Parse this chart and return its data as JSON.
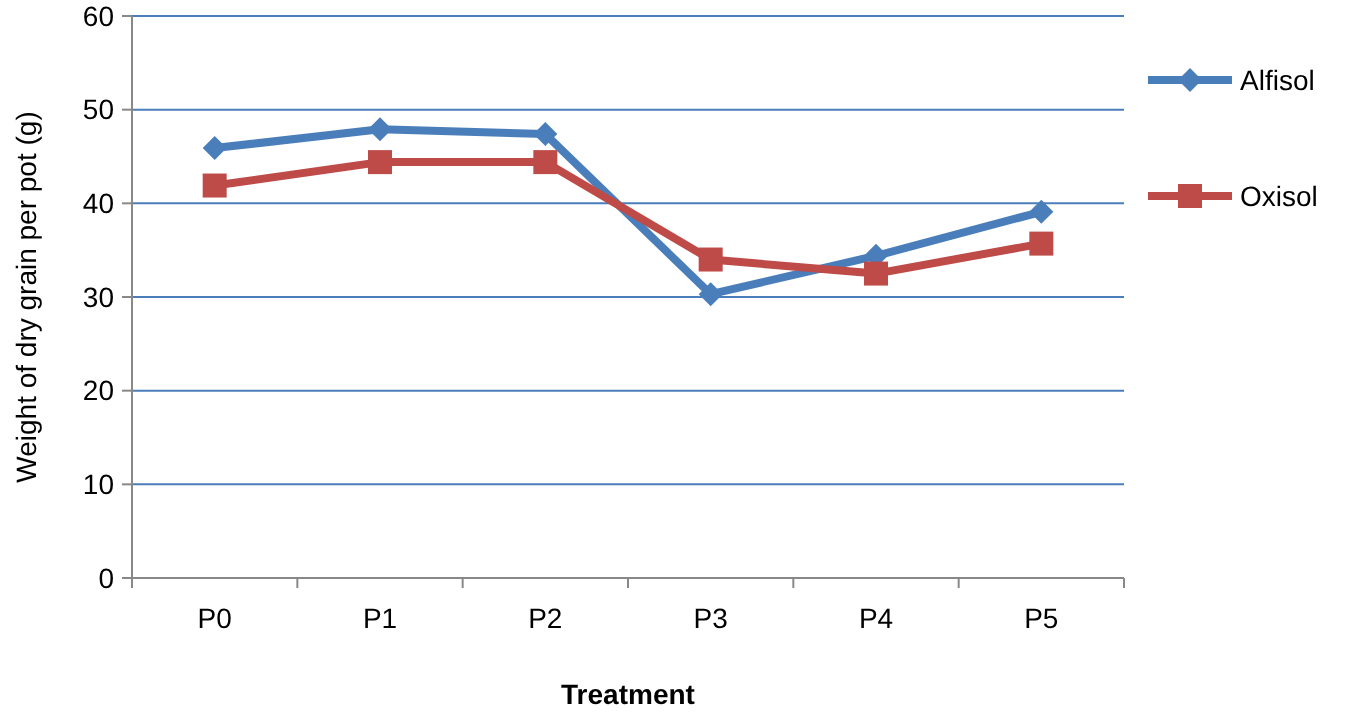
{
  "chart_data": {
    "type": "line",
    "xlabel": "Treatment",
    "ylabel": "Weight of dry grain per pot (g)",
    "categories": [
      "P0",
      "P1",
      "P2",
      "P3",
      "P4",
      "P5"
    ],
    "series": [
      {
        "name": "Alfisol",
        "color": "#4a7ebb",
        "values": [
          45.9,
          47.9,
          47.4,
          30.3,
          34.4,
          39.1
        ],
        "marker": "diamond"
      },
      {
        "name": "Oxisol",
        "color": "#be4b48",
        "values": [
          41.9,
          44.4,
          44.4,
          34.0,
          32.5,
          35.7
        ],
        "marker": "square"
      }
    ],
    "ylim": [
      0,
      60
    ],
    "yticks": [
      0,
      10,
      20,
      30,
      40,
      50,
      60
    ],
    "grid": "y",
    "legend": "right"
  }
}
